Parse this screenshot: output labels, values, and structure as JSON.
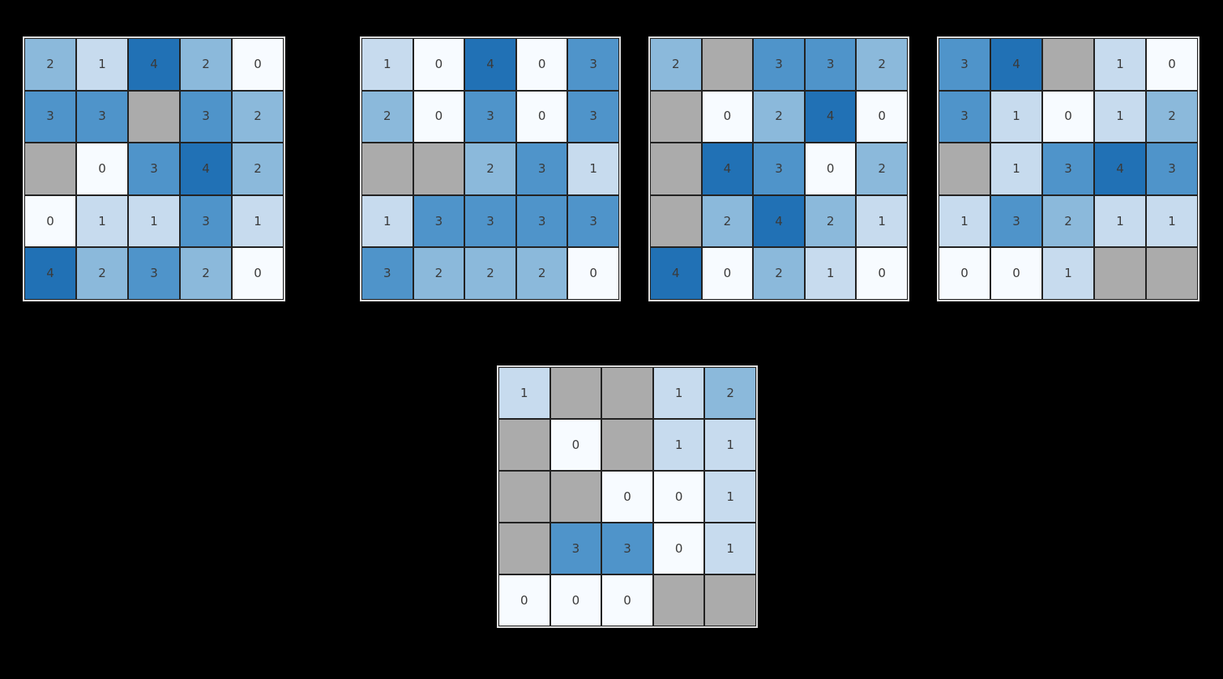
{
  "figure": {
    "background_color": "#000000",
    "frame_color": "#dcdcdc",
    "cell_border_color": "#222222",
    "cell_text_color": "#3a3a3a",
    "palette": {
      "v0": "#f7fbff",
      "v1": "#c7dbee",
      "v2": "#8bb9db",
      "v3": "#4f94ca",
      "v4": "#2171b5",
      "nan": "#ababab"
    }
  },
  "chart_data": [
    {
      "type": "heatmap",
      "name": "heatmap-1",
      "rows": 5,
      "cols": 5,
      "value_range": [
        0,
        4
      ],
      "colormap": "Blues",
      "masked_color": "gray",
      "grid": [
        [
          2,
          1,
          4,
          2,
          0
        ],
        [
          3,
          3,
          null,
          3,
          2
        ],
        [
          null,
          0,
          3,
          4,
          2
        ],
        [
          0,
          1,
          1,
          3,
          1
        ],
        [
          4,
          2,
          3,
          2,
          0
        ]
      ]
    },
    {
      "type": "heatmap",
      "name": "heatmap-2",
      "rows": 5,
      "cols": 5,
      "value_range": [
        0,
        4
      ],
      "colormap": "Blues",
      "masked_color": "gray",
      "grid": [
        [
          1,
          0,
          4,
          0,
          3
        ],
        [
          2,
          0,
          3,
          0,
          3
        ],
        [
          null,
          null,
          2,
          3,
          1
        ],
        [
          1,
          3,
          3,
          3,
          3
        ],
        [
          3,
          2,
          2,
          2,
          0
        ]
      ]
    },
    {
      "type": "heatmap",
      "name": "heatmap-3",
      "rows": 5,
      "cols": 5,
      "value_range": [
        0,
        4
      ],
      "colormap": "Blues",
      "masked_color": "gray",
      "grid": [
        [
          2,
          null,
          3,
          3,
          2
        ],
        [
          null,
          0,
          2,
          4,
          0
        ],
        [
          null,
          4,
          3,
          0,
          2
        ],
        [
          null,
          2,
          4,
          2,
          1
        ],
        [
          4,
          0,
          2,
          1,
          0
        ]
      ]
    },
    {
      "type": "heatmap",
      "name": "heatmap-4",
      "rows": 5,
      "cols": 5,
      "value_range": [
        0,
        4
      ],
      "colormap": "Blues",
      "masked_color": "gray",
      "grid": [
        [
          3,
          4,
          null,
          1,
          0
        ],
        [
          3,
          1,
          0,
          1,
          2
        ],
        [
          null,
          1,
          3,
          4,
          3
        ],
        [
          1,
          3,
          2,
          1,
          1
        ],
        [
          0,
          0,
          1,
          null,
          null
        ]
      ]
    },
    {
      "type": "heatmap",
      "name": "heatmap-5",
      "rows": 5,
      "cols": 5,
      "value_range": [
        0,
        4
      ],
      "colormap": "Blues",
      "masked_color": "gray",
      "grid": [
        [
          1,
          null,
          null,
          1,
          2
        ],
        [
          null,
          0,
          null,
          1,
          1
        ],
        [
          null,
          null,
          0,
          0,
          1
        ],
        [
          null,
          3,
          3,
          0,
          1
        ],
        [
          0,
          0,
          0,
          null,
          null
        ]
      ]
    }
  ]
}
